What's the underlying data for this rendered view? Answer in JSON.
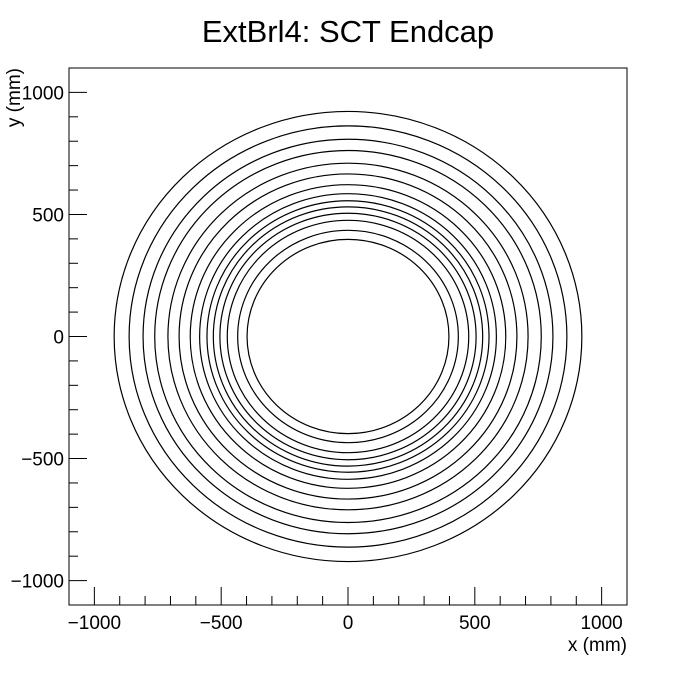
{
  "chart_data": {
    "type": "scatter",
    "title": "ExtBrl4: SCT Endcap",
    "xlabel": "x (mm)",
    "ylabel": "y (mm)",
    "xlim": [
      -1100,
      1100
    ],
    "ylim": [
      -1100,
      1100
    ],
    "x_ticks": [
      -1000,
      -500,
      0,
      500,
      1000
    ],
    "y_ticks": [
      -1000,
      -500,
      0,
      500,
      1000
    ],
    "x_tick_labels": [
      "−1000",
      "−500",
      "0",
      "500",
      "1000"
    ],
    "y_tick_labels": [
      "−1000",
      "−500",
      "0",
      "500",
      "1000"
    ],
    "grid": false,
    "legend": "none",
    "series": [
      {
        "shape": "rings",
        "center": [
          0,
          0
        ],
        "radii_mm": [
          398,
          435,
          476,
          505,
          531,
          556,
          585,
          622,
          666,
          710,
          762,
          808,
          863,
          922
        ]
      }
    ],
    "colors": {
      "line": "#000000",
      "frame": "#000000",
      "background": "#ffffff"
    }
  }
}
